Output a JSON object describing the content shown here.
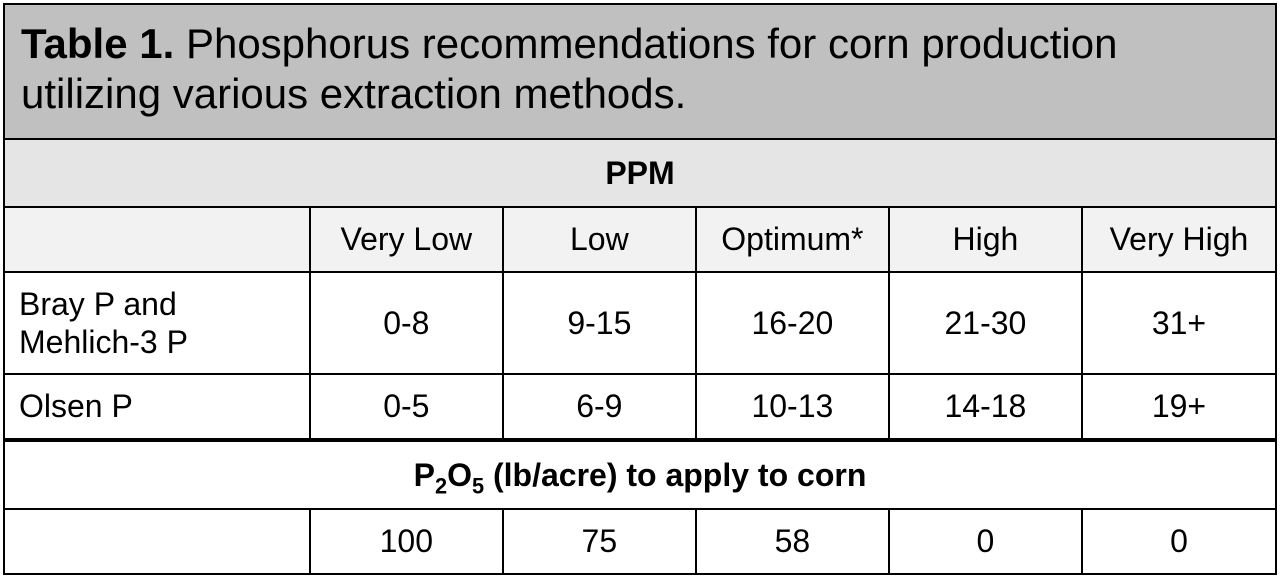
{
  "caption_bold": "Table 1.",
  "caption_rest": " Phosphorus recommendations for corn production utilizing various extraction methods.",
  "section1": "PPM",
  "col_widths_pct": [
    24,
    15.2,
    15.2,
    15.2,
    15.2,
    15.2
  ],
  "headers": [
    "",
    "Very Low",
    "Low",
    "Optimum*",
    "High",
    "Very High"
  ],
  "rows": [
    {
      "label": "Bray P and Mehlich-3 P",
      "cells": [
        "0-8",
        "9-15",
        "16-20",
        "21-30",
        "31+"
      ]
    },
    {
      "label": "Olsen P",
      "cells": [
        "0-5",
        "6-9",
        "10-13",
        "14-18",
        "19+"
      ]
    }
  ],
  "section2_html": "P<sub>2</sub>O<sub>5</sub> (lb/acre) to apply to corn",
  "apply": {
    "label": "",
    "cells": [
      "100",
      "75",
      "58",
      "0",
      "0"
    ]
  },
  "colors": {
    "caption_bg": "#c0c0c0",
    "band_bg": "#e5e5e5",
    "header_bg": "#f2f2f2",
    "border": "#000000",
    "cell_bg": "#ffffff"
  }
}
